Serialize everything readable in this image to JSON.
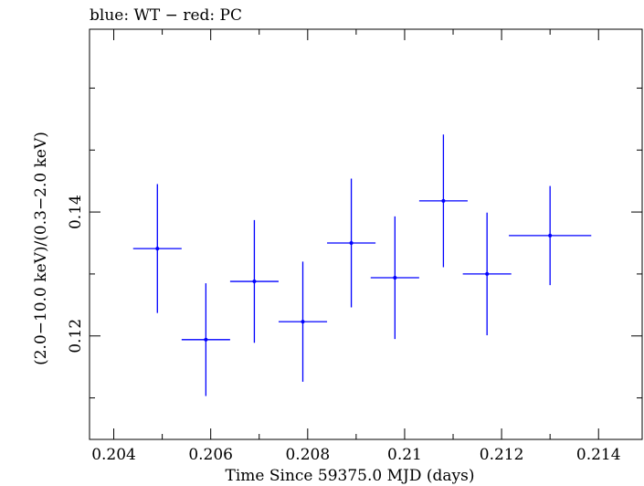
{
  "chart_data": {
    "type": "scatter",
    "title": "blue: WT − red: PC",
    "xlabel": "Time Since 59375.0 MJD (days)",
    "ylabel": "(2.0−10.0 keV)/(0.3−2.0 keV)",
    "xlim": [
      0.2035,
      0.2149
    ],
    "ylim": [
      0.1033,
      0.1695
    ],
    "grid": false,
    "x_ticks": [
      {
        "value": 0.204,
        "label": "0.204"
      },
      {
        "value": 0.206,
        "label": "0.206"
      },
      {
        "value": 0.208,
        "label": "0.208"
      },
      {
        "value": 0.21,
        "label": "0.21"
      },
      {
        "value": 0.212,
        "label": "0.212"
      },
      {
        "value": 0.214,
        "label": "0.214"
      }
    ],
    "y_ticks": [
      {
        "value": 0.12,
        "label": "0.12"
      },
      {
        "value": 0.14,
        "label": "0.14"
      }
    ],
    "series": [
      {
        "color": "#0000ff",
        "points": [
          {
            "x": 0.2049,
            "xerr": 0.0005,
            "y": 0.1341,
            "yerr": 0.0104
          },
          {
            "x": 0.2059,
            "xerr": 0.0005,
            "y": 0.1194,
            "yerr": 0.0091
          },
          {
            "x": 0.2069,
            "xerr": 0.0005,
            "y": 0.1288,
            "yerr": 0.0099
          },
          {
            "x": 0.2079,
            "xerr": 0.0005,
            "y": 0.1223,
            "yerr": 0.0097
          },
          {
            "x": 0.2089,
            "xerr": 0.0005,
            "y": 0.135,
            "yerr": 0.0104
          },
          {
            "x": 0.2098,
            "xerr": 0.0005,
            "y": 0.1294,
            "yerr": 0.0099
          },
          {
            "x": 0.2108,
            "xerr": 0.0005,
            "y": 0.1418,
            "yerr": 0.0107
          },
          {
            "x": 0.2117,
            "xerr": 0.0005,
            "y": 0.13,
            "yerr": 0.0099
          },
          {
            "x": 0.213,
            "xerr": 0.00085,
            "y": 0.1362,
            "yerr": 0.008
          }
        ]
      }
    ]
  }
}
